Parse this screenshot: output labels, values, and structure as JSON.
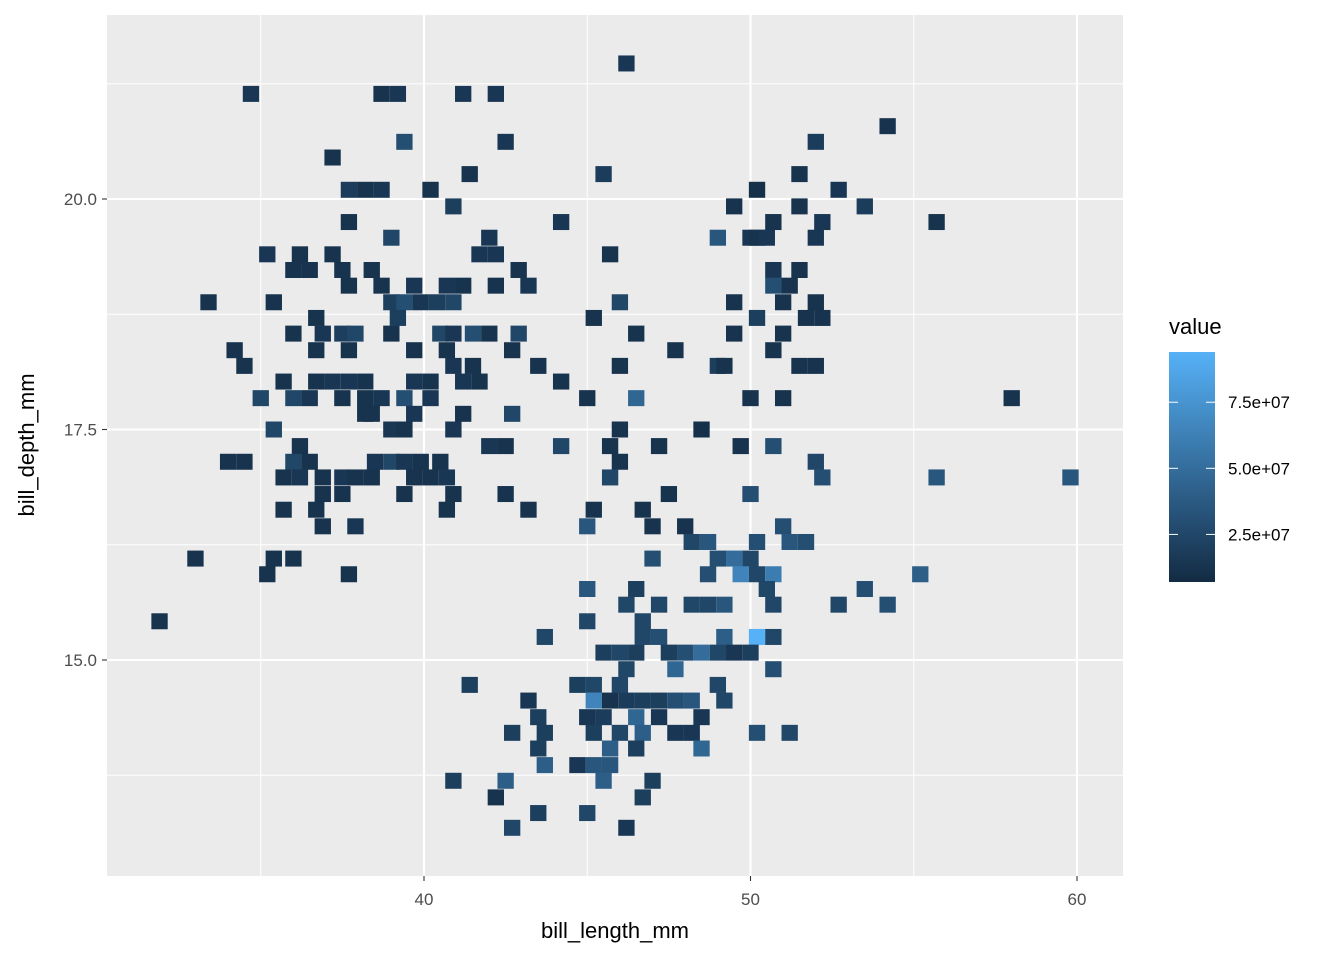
{
  "chart_data": {
    "type": "heatmap",
    "xlabel": "bill_length_mm",
    "ylabel": "bill_depth_mm",
    "xlim": [
      30.5,
      61.5
    ],
    "ylim": [
      12.6,
      21.8
    ],
    "x_ticks": [
      "40",
      "50",
      "60"
    ],
    "x_tick_values": [
      40,
      50,
      60
    ],
    "y_ticks": [
      "15.0",
      "17.5",
      "20.0"
    ],
    "y_tick_values": [
      15.0,
      17.5,
      20.0
    ],
    "grid": true,
    "legend": {
      "title": "value",
      "position": "right",
      "ticks": [
        "2.5e+07",
        "5.0e+07",
        "7.5e+07"
      ],
      "tick_values": [
        25000000,
        50000000,
        75000000
      ],
      "range": [
        7000000,
        94000000
      ],
      "low_color": "#132B43",
      "high_color": "#56B1F7"
    },
    "tiles": [
      [
        46.2,
        21.47,
        15000000.0
      ],
      [
        34.7,
        21.14,
        15000000.0
      ],
      [
        38.7,
        21.14,
        12000000.0
      ],
      [
        39.2,
        21.14,
        15000000.0
      ],
      [
        41.2,
        21.14,
        15000000.0
      ],
      [
        42.2,
        21.14,
        15000000.0
      ],
      [
        54.2,
        20.79,
        12000000.0
      ],
      [
        39.4,
        20.62,
        30000000.0
      ],
      [
        42.5,
        20.62,
        15000000.0
      ],
      [
        52.0,
        20.62,
        18000000.0
      ],
      [
        37.2,
        20.45,
        12000000.0
      ],
      [
        41.4,
        20.27,
        12000000.0
      ],
      [
        45.5,
        20.27,
        18000000.0
      ],
      [
        51.5,
        20.27,
        12000000.0
      ],
      [
        37.7,
        20.1,
        18000000.0
      ],
      [
        38.2,
        20.1,
        12000000.0
      ],
      [
        38.7,
        20.1,
        15000000.0
      ],
      [
        40.2,
        20.1,
        12000000.0
      ],
      [
        50.2,
        20.1,
        10000000.0
      ],
      [
        52.7,
        20.1,
        15000000.0
      ],
      [
        40.9,
        19.92,
        20000000.0
      ],
      [
        49.5,
        19.92,
        12000000.0
      ],
      [
        51.5,
        19.92,
        12000000.0
      ],
      [
        53.5,
        19.92,
        18000000.0
      ],
      [
        37.7,
        19.75,
        12000000.0
      ],
      [
        44.2,
        19.75,
        15000000.0
      ],
      [
        50.7,
        19.75,
        12000000.0
      ],
      [
        52.2,
        19.75,
        15000000.0
      ],
      [
        55.7,
        19.75,
        12000000.0
      ],
      [
        39.0,
        19.58,
        25000000.0
      ],
      [
        42.0,
        19.58,
        15000000.0
      ],
      [
        49.0,
        19.58,
        35000000.0
      ],
      [
        50.0,
        19.58,
        15000000.0
      ],
      [
        50.2,
        19.58,
        12000000.0
      ],
      [
        50.5,
        19.58,
        15000000.0
      ],
      [
        52.0,
        19.58,
        15000000.0
      ],
      [
        35.2,
        19.4,
        15000000.0
      ],
      [
        36.2,
        19.4,
        12000000.0
      ],
      [
        37.2,
        19.4,
        12000000.0
      ],
      [
        41.7,
        19.4,
        15000000.0
      ],
      [
        42.2,
        19.4,
        15000000.0
      ],
      [
        45.7,
        19.4,
        12000000.0
      ],
      [
        36.0,
        19.23,
        12000000.0
      ],
      [
        36.5,
        19.23,
        12000000.0
      ],
      [
        37.5,
        19.23,
        12000000.0
      ],
      [
        38.4,
        19.23,
        12000000.0
      ],
      [
        42.9,
        19.23,
        12000000.0
      ],
      [
        50.7,
        19.23,
        15000000.0
      ],
      [
        51.5,
        19.23,
        12000000.0
      ],
      [
        37.7,
        19.06,
        12000000.0
      ],
      [
        38.7,
        19.06,
        12000000.0
      ],
      [
        39.7,
        19.06,
        15000000.0
      ],
      [
        40.7,
        19.06,
        15000000.0
      ],
      [
        41.2,
        19.06,
        12000000.0
      ],
      [
        42.2,
        19.06,
        12000000.0
      ],
      [
        43.2,
        19.06,
        15000000.0
      ],
      [
        50.7,
        19.06,
        30000000.0
      ],
      [
        51.2,
        19.06,
        12000000.0
      ],
      [
        33.4,
        18.88,
        12000000.0
      ],
      [
        35.4,
        18.88,
        12000000.0
      ],
      [
        39.0,
        18.88,
        20000000.0
      ],
      [
        39.4,
        18.88,
        30000000.0
      ],
      [
        39.9,
        18.88,
        15000000.0
      ],
      [
        40.4,
        18.88,
        20000000.0
      ],
      [
        40.9,
        18.88,
        25000000.0
      ],
      [
        46.0,
        18.88,
        25000000.0
      ],
      [
        49.5,
        18.88,
        12000000.0
      ],
      [
        51.0,
        18.88,
        12000000.0
      ],
      [
        52.0,
        18.88,
        12000000.0
      ],
      [
        36.7,
        18.71,
        12000000.0
      ],
      [
        39.2,
        18.71,
        20000000.0
      ],
      [
        45.2,
        18.71,
        12000000.0
      ],
      [
        50.2,
        18.71,
        20000000.0
      ],
      [
        51.7,
        18.71,
        12000000.0
      ],
      [
        52.2,
        18.71,
        12000000.0
      ],
      [
        36.0,
        18.54,
        12000000.0
      ],
      [
        36.9,
        18.54,
        15000000.0
      ],
      [
        37.5,
        18.54,
        20000000.0
      ],
      [
        37.9,
        18.54,
        25000000.0
      ],
      [
        39.0,
        18.54,
        12000000.0
      ],
      [
        40.5,
        18.54,
        25000000.0
      ],
      [
        40.9,
        18.54,
        15000000.0
      ],
      [
        41.5,
        18.54,
        30000000.0
      ],
      [
        42.0,
        18.54,
        12000000.0
      ],
      [
        42.9,
        18.54,
        25000000.0
      ],
      [
        46.5,
        18.54,
        12000000.0
      ],
      [
        49.5,
        18.54,
        12000000.0
      ],
      [
        51.0,
        18.54,
        12000000.0
      ],
      [
        34.2,
        18.36,
        12000000.0
      ],
      [
        36.7,
        18.36,
        12000000.0
      ],
      [
        37.7,
        18.36,
        12000000.0
      ],
      [
        39.7,
        18.36,
        12000000.0
      ],
      [
        40.7,
        18.36,
        12000000.0
      ],
      [
        42.7,
        18.36,
        12000000.0
      ],
      [
        47.7,
        18.36,
        12000000.0
      ],
      [
        50.7,
        18.36,
        12000000.0
      ],
      [
        34.5,
        18.19,
        12000000.0
      ],
      [
        40.9,
        18.19,
        15000000.0
      ],
      [
        41.5,
        18.19,
        12000000.0
      ],
      [
        43.5,
        18.19,
        12000000.0
      ],
      [
        46.0,
        18.19,
        12000000.0
      ],
      [
        49.0,
        18.19,
        20000000.0
      ],
      [
        49.2,
        18.19,
        12000000.0
      ],
      [
        51.5,
        18.19,
        12000000.0
      ],
      [
        52.0,
        18.19,
        12000000.0
      ],
      [
        35.7,
        18.02,
        12000000.0
      ],
      [
        36.7,
        18.02,
        12000000.0
      ],
      [
        37.2,
        18.02,
        15000000.0
      ],
      [
        37.7,
        18.02,
        15000000.0
      ],
      [
        38.2,
        18.02,
        12000000.0
      ],
      [
        39.7,
        18.02,
        15000000.0
      ],
      [
        40.2,
        18.02,
        12000000.0
      ],
      [
        41.2,
        18.02,
        15000000.0
      ],
      [
        41.7,
        18.02,
        12000000.0
      ],
      [
        44.2,
        18.02,
        12000000.0
      ],
      [
        35.0,
        17.84,
        25000000.0
      ],
      [
        36.0,
        17.84,
        25000000.0
      ],
      [
        36.5,
        17.84,
        15000000.0
      ],
      [
        37.5,
        17.84,
        12000000.0
      ],
      [
        38.2,
        17.84,
        12000000.0
      ],
      [
        38.7,
        17.84,
        15000000.0
      ],
      [
        39.4,
        17.84,
        30000000.0
      ],
      [
        40.2,
        17.84,
        15000000.0
      ],
      [
        45.0,
        17.84,
        12000000.0
      ],
      [
        46.5,
        17.84,
        45000000.0
      ],
      [
        50.0,
        17.84,
        12000000.0
      ],
      [
        51.0,
        17.84,
        12000000.0
      ],
      [
        58.0,
        17.84,
        12000000.0
      ],
      [
        38.2,
        17.67,
        12000000.0
      ],
      [
        38.4,
        17.67,
        12000000.0
      ],
      [
        39.7,
        17.67,
        15000000.0
      ],
      [
        41.2,
        17.67,
        12000000.0
      ],
      [
        42.7,
        17.67,
        25000000.0
      ],
      [
        35.4,
        17.5,
        25000000.0
      ],
      [
        39.0,
        17.5,
        15000000.0
      ],
      [
        39.4,
        17.5,
        12000000.0
      ],
      [
        40.9,
        17.5,
        15000000.0
      ],
      [
        46.0,
        17.5,
        12000000.0
      ],
      [
        48.5,
        17.5,
        10000000.0
      ],
      [
        36.2,
        17.32,
        12000000.0
      ],
      [
        42.0,
        17.32,
        15000000.0
      ],
      [
        42.5,
        17.32,
        12000000.0
      ],
      [
        44.2,
        17.32,
        25000000.0
      ],
      [
        45.7,
        17.32,
        12000000.0
      ],
      [
        47.2,
        17.32,
        12000000.0
      ],
      [
        49.7,
        17.32,
        12000000.0
      ],
      [
        50.7,
        17.32,
        30000000.0
      ],
      [
        34.0,
        17.15,
        12000000.0
      ],
      [
        34.5,
        17.15,
        12000000.0
      ],
      [
        36.0,
        17.15,
        25000000.0
      ],
      [
        36.5,
        17.15,
        12000000.0
      ],
      [
        38.5,
        17.15,
        15000000.0
      ],
      [
        39.0,
        17.15,
        25000000.0
      ],
      [
        39.4,
        17.15,
        15000000.0
      ],
      [
        39.9,
        17.15,
        12000000.0
      ],
      [
        40.5,
        17.15,
        12000000.0
      ],
      [
        46.0,
        17.15,
        12000000.0
      ],
      [
        52.0,
        17.15,
        25000000.0
      ],
      [
        35.7,
        16.98,
        12000000.0
      ],
      [
        36.2,
        16.98,
        15000000.0
      ],
      [
        36.9,
        16.98,
        12000000.0
      ],
      [
        37.5,
        16.98,
        15000000.0
      ],
      [
        37.9,
        16.98,
        12000000.0
      ],
      [
        38.4,
        16.98,
        12000000.0
      ],
      [
        39.7,
        16.98,
        12000000.0
      ],
      [
        40.2,
        16.98,
        12000000.0
      ],
      [
        40.7,
        16.98,
        15000000.0
      ],
      [
        45.7,
        16.98,
        25000000.0
      ],
      [
        52.2,
        16.98,
        30000000.0
      ],
      [
        55.7,
        16.98,
        35000000.0
      ],
      [
        59.8,
        16.98,
        35000000.0
      ],
      [
        36.9,
        16.8,
        12000000.0
      ],
      [
        37.5,
        16.8,
        12000000.0
      ],
      [
        39.4,
        16.8,
        12000000.0
      ],
      [
        40.9,
        16.8,
        12000000.0
      ],
      [
        42.5,
        16.8,
        12000000.0
      ],
      [
        47.5,
        16.8,
        12000000.0
      ],
      [
        50.0,
        16.8,
        30000000.0
      ],
      [
        35.7,
        16.63,
        12000000.0
      ],
      [
        36.7,
        16.63,
        12000000.0
      ],
      [
        40.7,
        16.63,
        12000000.0
      ],
      [
        43.2,
        16.63,
        12000000.0
      ],
      [
        45.2,
        16.63,
        12000000.0
      ],
      [
        46.7,
        16.63,
        12000000.0
      ],
      [
        36.9,
        16.45,
        12000000.0
      ],
      [
        37.9,
        16.45,
        15000000.0
      ],
      [
        45.0,
        16.45,
        35000000.0
      ],
      [
        47.0,
        16.45,
        12000000.0
      ],
      [
        48.0,
        16.45,
        12000000.0
      ],
      [
        51.0,
        16.45,
        30000000.0
      ],
      [
        48.2,
        16.28,
        25000000.0
      ],
      [
        48.7,
        16.28,
        35000000.0
      ],
      [
        50.2,
        16.28,
        30000000.0
      ],
      [
        51.2,
        16.28,
        35000000.0
      ],
      [
        51.7,
        16.28,
        30000000.0
      ],
      [
        33.0,
        16.1,
        12000000.0
      ],
      [
        35.4,
        16.1,
        12000000.0
      ],
      [
        36.0,
        16.1,
        12000000.0
      ],
      [
        47.0,
        16.1,
        30000000.0
      ],
      [
        49.0,
        16.1,
        30000000.0
      ],
      [
        49.5,
        16.1,
        50000000.0
      ],
      [
        50.0,
        16.1,
        25000000.0
      ],
      [
        35.2,
        15.93,
        12000000.0
      ],
      [
        37.7,
        15.93,
        12000000.0
      ],
      [
        48.7,
        15.93,
        30000000.0
      ],
      [
        49.7,
        15.93,
        65000000.0
      ],
      [
        50.2,
        15.93,
        25000000.0
      ],
      [
        50.7,
        15.93,
        60000000.0
      ],
      [
        55.2,
        15.93,
        40000000.0
      ],
      [
        45.0,
        15.77,
        35000000.0
      ],
      [
        46.5,
        15.77,
        20000000.0
      ],
      [
        50.5,
        15.77,
        25000000.0
      ],
      [
        53.5,
        15.77,
        30000000.0
      ],
      [
        46.2,
        15.6,
        25000000.0
      ],
      [
        47.2,
        15.6,
        25000000.0
      ],
      [
        48.2,
        15.6,
        25000000.0
      ],
      [
        48.7,
        15.6,
        25000000.0
      ],
      [
        49.2,
        15.6,
        35000000.0
      ],
      [
        50.7,
        15.6,
        25000000.0
      ],
      [
        52.7,
        15.6,
        25000000.0
      ],
      [
        54.2,
        15.6,
        30000000.0
      ],
      [
        31.9,
        15.42,
        12000000.0
      ],
      [
        45.0,
        15.42,
        25000000.0
      ],
      [
        46.7,
        15.42,
        25000000.0
      ],
      [
        43.7,
        15.25,
        25000000.0
      ],
      [
        46.7,
        15.25,
        25000000.0
      ],
      [
        47.2,
        15.25,
        30000000.0
      ],
      [
        49.2,
        15.25,
        40000000.0
      ],
      [
        50.2,
        15.25,
        94000000.0
      ],
      [
        50.7,
        15.25,
        25000000.0
      ],
      [
        45.5,
        15.08,
        20000000.0
      ],
      [
        46.0,
        15.08,
        25000000.0
      ],
      [
        46.5,
        15.08,
        20000000.0
      ],
      [
        47.5,
        15.08,
        20000000.0
      ],
      [
        48.0,
        15.08,
        30000000.0
      ],
      [
        48.5,
        15.08,
        50000000.0
      ],
      [
        49.0,
        15.08,
        25000000.0
      ],
      [
        49.5,
        15.08,
        15000000.0
      ],
      [
        50.0,
        15.08,
        20000000.0
      ],
      [
        46.2,
        14.9,
        25000000.0
      ],
      [
        47.7,
        14.9,
        45000000.0
      ],
      [
        50.7,
        14.9,
        30000000.0
      ],
      [
        41.4,
        14.73,
        20000000.0
      ],
      [
        44.7,
        14.73,
        20000000.0
      ],
      [
        45.2,
        14.73,
        25000000.0
      ],
      [
        46.0,
        14.73,
        25000000.0
      ],
      [
        49.0,
        14.73,
        25000000.0
      ],
      [
        43.2,
        14.56,
        15000000.0
      ],
      [
        45.2,
        14.56,
        65000000.0
      ],
      [
        45.7,
        14.56,
        12000000.0
      ],
      [
        46.2,
        14.56,
        18000000.0
      ],
      [
        46.7,
        14.56,
        20000000.0
      ],
      [
        47.2,
        14.56,
        20000000.0
      ],
      [
        47.7,
        14.56,
        30000000.0
      ],
      [
        48.2,
        14.56,
        35000000.0
      ],
      [
        49.2,
        14.56,
        25000000.0
      ],
      [
        43.5,
        14.38,
        20000000.0
      ],
      [
        45.0,
        14.38,
        15000000.0
      ],
      [
        45.5,
        14.38,
        18000000.0
      ],
      [
        46.5,
        14.38,
        45000000.0
      ],
      [
        47.2,
        14.38,
        15000000.0
      ],
      [
        48.5,
        14.38,
        15000000.0
      ],
      [
        42.7,
        14.21,
        20000000.0
      ],
      [
        43.7,
        14.21,
        20000000.0
      ],
      [
        45.2,
        14.21,
        20000000.0
      ],
      [
        46.0,
        14.21,
        25000000.0
      ],
      [
        46.7,
        14.21,
        40000000.0
      ],
      [
        47.7,
        14.21,
        15000000.0
      ],
      [
        48.2,
        14.21,
        15000000.0
      ],
      [
        50.2,
        14.21,
        30000000.0
      ],
      [
        51.2,
        14.21,
        25000000.0
      ],
      [
        43.5,
        14.04,
        20000000.0
      ],
      [
        45.7,
        14.04,
        40000000.0
      ],
      [
        46.5,
        14.04,
        20000000.0
      ],
      [
        48.5,
        14.04,
        45000000.0
      ],
      [
        43.7,
        13.86,
        40000000.0
      ],
      [
        44.7,
        13.86,
        15000000.0
      ],
      [
        45.2,
        13.86,
        35000000.0
      ],
      [
        45.7,
        13.86,
        35000000.0
      ],
      [
        40.9,
        13.69,
        20000000.0
      ],
      [
        42.5,
        13.69,
        40000000.0
      ],
      [
        45.5,
        13.69,
        40000000.0
      ],
      [
        47.0,
        13.69,
        20000000.0
      ],
      [
        42.2,
        13.51,
        12000000.0
      ],
      [
        46.7,
        13.51,
        20000000.0
      ],
      [
        43.5,
        13.34,
        20000000.0
      ],
      [
        45.0,
        13.34,
        25000000.0
      ],
      [
        42.7,
        13.18,
        25000000.0
      ],
      [
        46.2,
        13.18,
        15000000.0
      ]
    ]
  }
}
